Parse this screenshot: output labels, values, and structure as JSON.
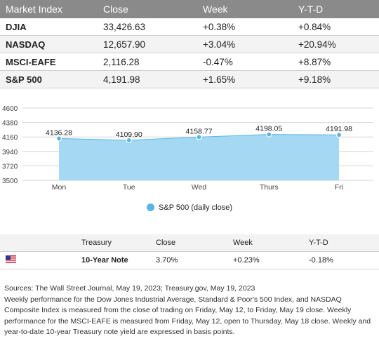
{
  "index_table": {
    "headers": [
      "Market Index",
      "Close",
      "Week",
      "Y-T-D"
    ],
    "rows": [
      {
        "name": "DJIA",
        "close": "33,426.63",
        "week": "+0.38%",
        "ytd": "+0.84%"
      },
      {
        "name": "NASDAQ",
        "close": "12,657.90",
        "week": "+3.04%",
        "ytd": "+20.94%"
      },
      {
        "name": "MSCI-EAFE",
        "close": "2,116.28",
        "week": "-0.47%",
        "ytd": "+8.87%"
      },
      {
        "name": "S&P 500",
        "close": "4,191.98",
        "week": "+1.65%",
        "ytd": "+9.18%"
      }
    ]
  },
  "chart_data": {
    "type": "area",
    "categories": [
      "Mon",
      "Tue",
      "Wed",
      "Thurs",
      "Fri"
    ],
    "series": [
      {
        "name": "S&P 500 (daily close)",
        "values": [
          4136.28,
          4109.9,
          4158.77,
          4198.05,
          4191.98
        ]
      }
    ],
    "data_labels": [
      "4136.28",
      "4109.90",
      "4158.77",
      "4198.05",
      "4191.98"
    ],
    "yticks": [
      3500,
      3720,
      3940,
      4160,
      4380,
      4600
    ],
    "ylim": [
      3500,
      4600
    ],
    "grid": true,
    "legend_position": "bottom",
    "color": "#a5d8f3",
    "marker_color": "#5ab5e6"
  },
  "legend_label": "S&P 500 (daily close)",
  "treasury": {
    "headers": [
      "Treasury",
      "Close",
      "Week",
      "Y-T-D"
    ],
    "row": {
      "name": "10-Year Note",
      "close": "3.70%",
      "week": "+0.23%",
      "ytd": "-0.18%"
    },
    "flag_icon": "us-flag-icon"
  },
  "notes": {
    "sources": "Sources: The Wall Street Journal, May 19, 2023; Treasury.gov, May 19, 2023",
    "body": "Weekly performance for the Dow Jones Industrial Average, Standard & Poor's 500 Index, and NASDAQ Composite Index is measured from the close of trading on Friday, May 12, to Friday, May 19 close. Weekly performance for the MSCI-EAFE is measured from Friday, May 12, open to Thursday, May 18 close. Weekly and year-to-date 10-year Treasury note yield are expressed in basis points."
  }
}
